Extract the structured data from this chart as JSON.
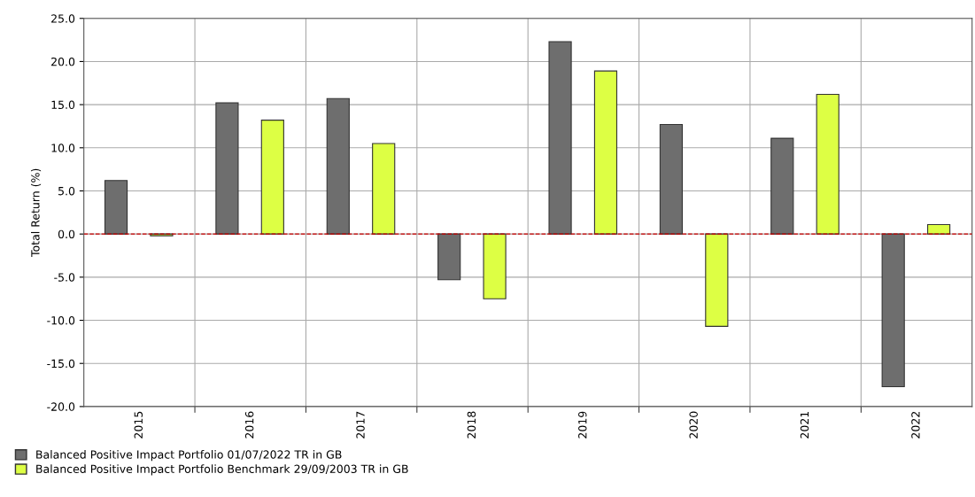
{
  "chart_data": {
    "type": "bar",
    "ylabel": "Total Return (%)",
    "categories": [
      "2015",
      "2016",
      "2017",
      "2018",
      "2019",
      "2020",
      "2021",
      "2022"
    ],
    "series": [
      {
        "name": "Balanced Positive Impact Portfolio 01/07/2022 TR in GB",
        "color": "#6e6e6e",
        "values": [
          6.2,
          15.2,
          15.7,
          -5.3,
          22.3,
          12.7,
          11.1,
          -17.7
        ]
      },
      {
        "name": "Balanced Positive Impact Portfolio Benchmark 29/09/2003 TR in GB",
        "color": "#ddff44",
        "values": [
          -0.2,
          13.2,
          10.5,
          -7.5,
          18.9,
          -10.7,
          16.2,
          1.1
        ]
      }
    ],
    "ylim": [
      -20,
      25
    ],
    "yticks": [
      {
        "value": -20,
        "label": "-20.0"
      },
      {
        "value": -15,
        "label": "-15.0"
      },
      {
        "value": -10,
        "label": "-10.0"
      },
      {
        "value": -5,
        "label": "-5.0"
      },
      {
        "value": 0,
        "label": "0.0"
      },
      {
        "value": 5,
        "label": "5.0"
      },
      {
        "value": 10,
        "label": "10.0"
      },
      {
        "value": 15,
        "label": "15.0"
      },
      {
        "value": 20,
        "label": "20.0"
      },
      {
        "value": 25,
        "label": "25.0"
      }
    ],
    "ref_lines": [
      {
        "axis": "y",
        "value": 0,
        "color": "#cc0000",
        "line_style": "dashed"
      }
    ],
    "grid": true,
    "legend": "bottom left"
  }
}
